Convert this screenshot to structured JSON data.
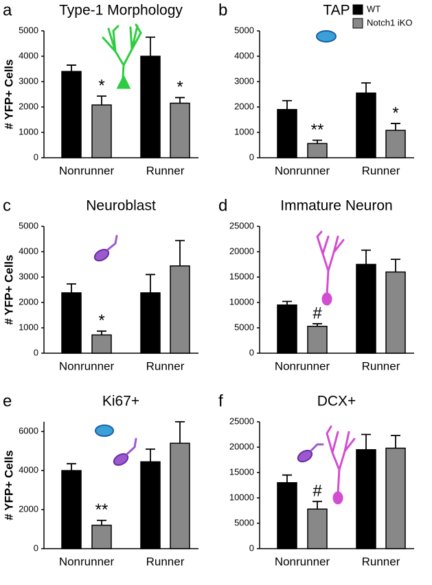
{
  "chart_data": [
    {
      "type": "bar",
      "panel": "a",
      "title": "Type-1 Morphology",
      "y_label": "# YFP+ Cells",
      "categories": [
        "Nonrunner",
        "Runner"
      ],
      "series": [
        {
          "color": "#000000",
          "values": [
            3400,
            4000
          ],
          "errors": [
            250,
            750
          ]
        },
        {
          "color": "#888888",
          "values": [
            2080,
            2150
          ],
          "errors": [
            350,
            220
          ],
          "significance": [
            "*",
            "*"
          ]
        }
      ],
      "ylim": [
        0,
        5000
      ],
      "yticks": [
        0,
        1000,
        2000,
        3000,
        4000,
        5000
      ]
    },
    {
      "type": "bar",
      "panel": "b",
      "title": "TAP",
      "categories": [
        "Nonrunner",
        "Runner"
      ],
      "series": [
        {
          "name": "WT",
          "color": "#000000",
          "values": [
            1900,
            2550
          ],
          "errors": [
            350,
            400
          ]
        },
        {
          "name": "Notch1 iKO",
          "color": "#888888",
          "values": [
            560,
            1080
          ],
          "errors": [
            130,
            270
          ],
          "significance": [
            "**",
            "*"
          ]
        }
      ],
      "legend": "upper right",
      "ylim": [
        0,
        5000
      ],
      "yticks": [
        0,
        1000,
        2000,
        3000,
        4000,
        5000
      ]
    },
    {
      "type": "bar",
      "panel": "c",
      "title": "Neuroblast",
      "y_label": "# YFP+ Cells",
      "categories": [
        "Nonrunner",
        "Runner"
      ],
      "series": [
        {
          "color": "#000000",
          "values": [
            2380,
            2380
          ],
          "errors": [
            350,
            720
          ]
        },
        {
          "color": "#888888",
          "values": [
            720,
            3440
          ],
          "errors": [
            150,
            1000
          ],
          "significance": [
            "*",
            null
          ]
        }
      ],
      "ylim": [
        0,
        5000
      ],
      "yticks": [
        0,
        1000,
        2000,
        3000,
        4000,
        5000
      ]
    },
    {
      "type": "bar",
      "panel": "d",
      "title": "Immature Neuron",
      "categories": [
        "Nonrunner",
        "Runner"
      ],
      "series": [
        {
          "color": "#000000",
          "values": [
            9500,
            17500
          ],
          "errors": [
            700,
            2800
          ]
        },
        {
          "color": "#888888",
          "values": [
            5300,
            16000
          ],
          "errors": [
            500,
            2500
          ],
          "significance": [
            "#",
            null
          ]
        }
      ],
      "ylim": [
        0,
        25000
      ],
      "yticks": [
        0,
        5000,
        10000,
        15000,
        20000,
        25000
      ]
    },
    {
      "type": "bar",
      "panel": "e",
      "title": "Ki67+",
      "y_label": "# YFP+ Cells",
      "categories": [
        "Nonrunner",
        "Runner"
      ],
      "series": [
        {
          "color": "#000000",
          "values": [
            4000,
            4450
          ],
          "errors": [
            350,
            650
          ]
        },
        {
          "color": "#888888",
          "values": [
            1200,
            5400
          ],
          "errors": [
            250,
            1100
          ],
          "significance": [
            "**",
            null
          ]
        }
      ],
      "ylim": [
        0,
        6500
      ],
      "yticks": [
        0,
        2000,
        4000,
        6000
      ]
    },
    {
      "type": "bar",
      "panel": "f",
      "title": "DCX+",
      "categories": [
        "Nonrunner",
        "Runner"
      ],
      "series": [
        {
          "color": "#000000",
          "values": [
            13000,
            19500
          ],
          "errors": [
            1500,
            3000
          ]
        },
        {
          "color": "#888888",
          "values": [
            7800,
            19800
          ],
          "errors": [
            1500,
            2500
          ],
          "significance": [
            "#",
            null
          ]
        }
      ],
      "ylim": [
        0,
        25000
      ],
      "yticks": [
        0,
        5000,
        10000,
        15000,
        20000,
        25000
      ]
    }
  ]
}
